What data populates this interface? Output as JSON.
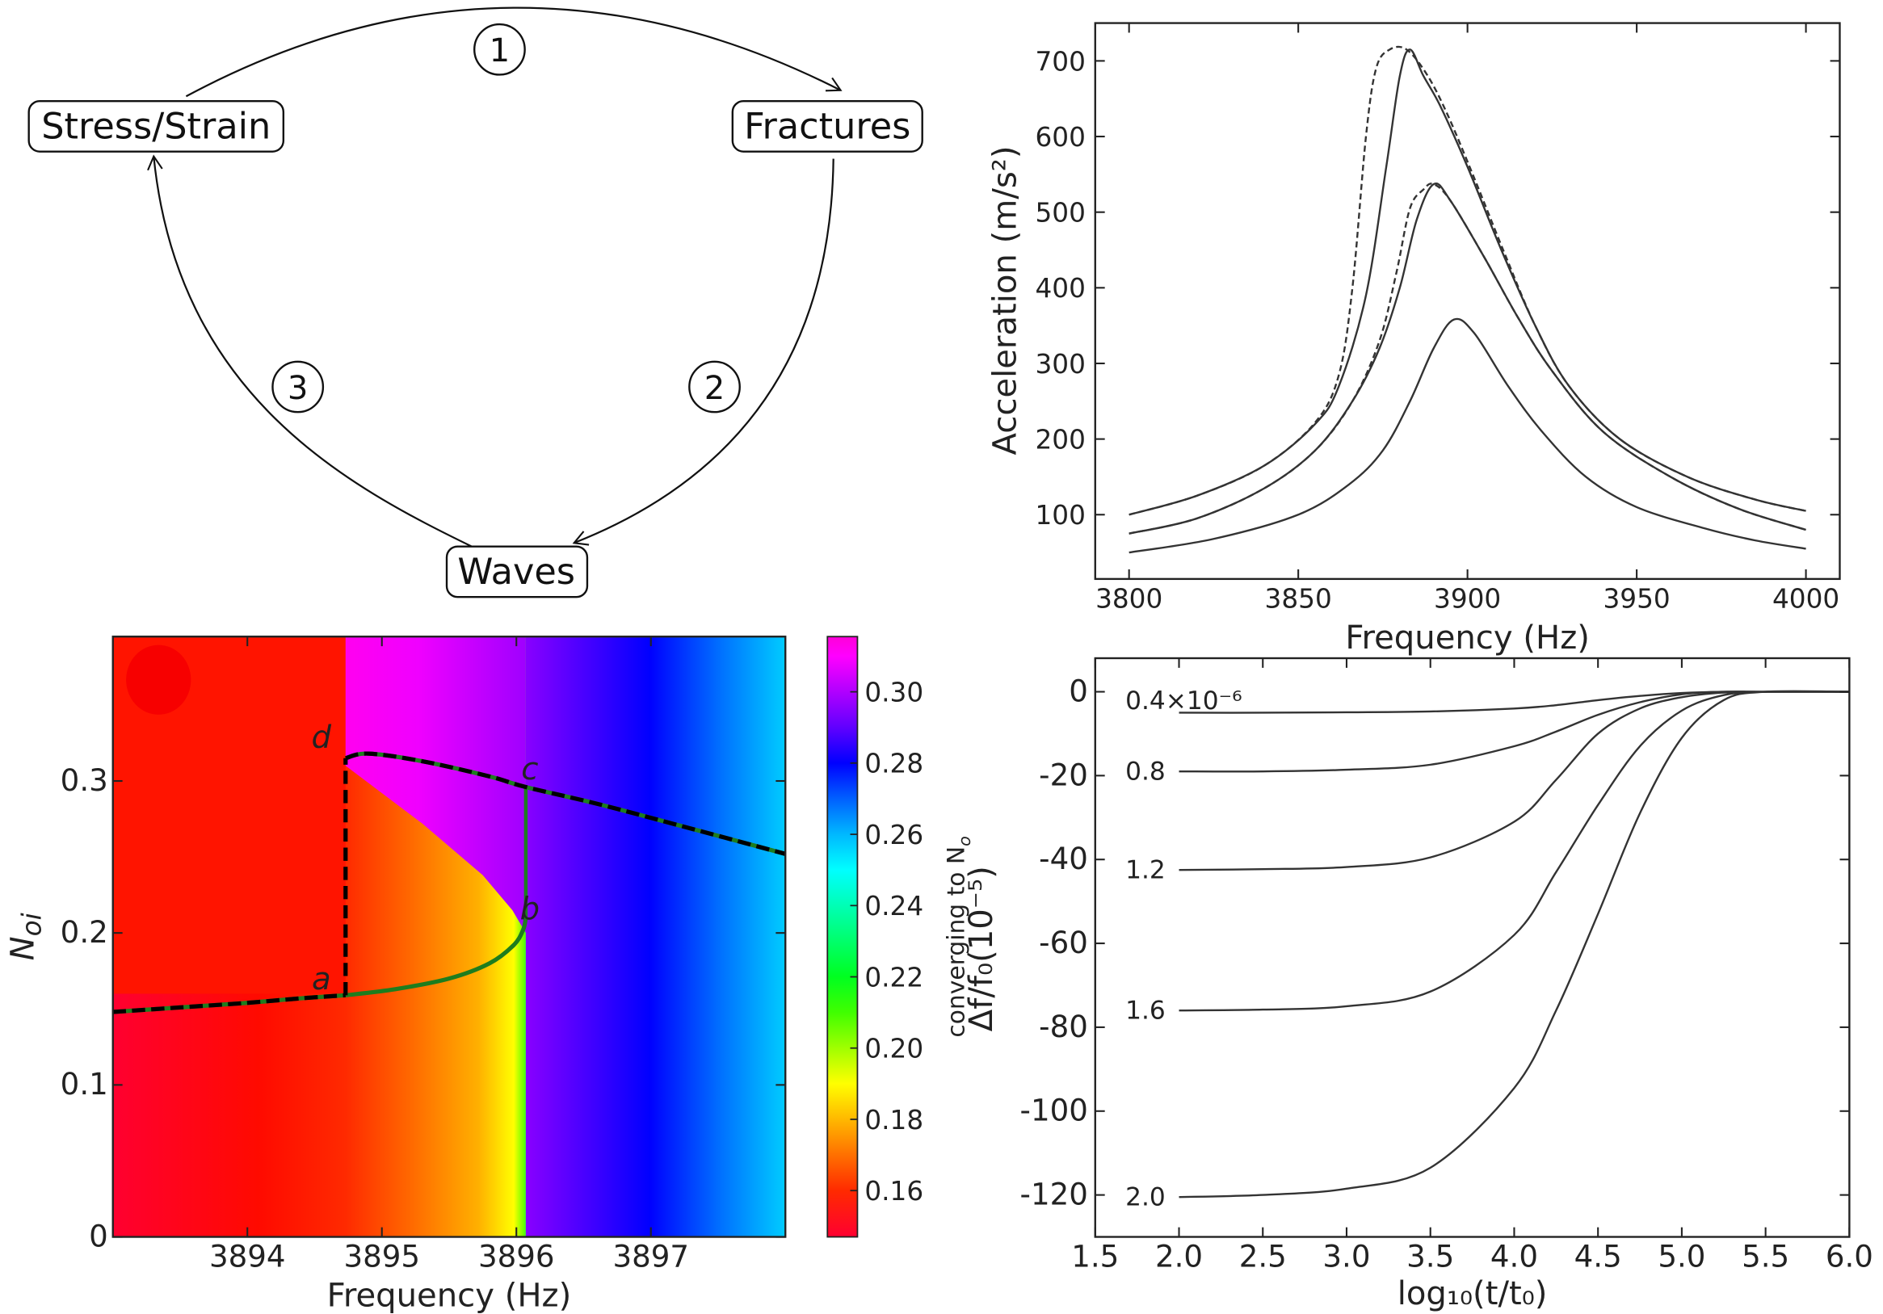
{
  "diagram": {
    "nodes": {
      "stress": "Stress/Strain",
      "fractures": "Fractures",
      "waves": "Waves"
    },
    "steps": [
      "1",
      "2",
      "3"
    ]
  },
  "chart_data": [
    {
      "type": "line",
      "xlabel": "Frequency (Hz)",
      "ylabel": "Acceleration (m/s²)",
      "xlim": [
        3790,
        4010
      ],
      "ylim": [
        15,
        750
      ],
      "x_ticks": [
        "3800",
        "3850",
        "3900",
        "3950",
        "4000"
      ],
      "y_ticks": [
        "100",
        "200",
        "300",
        "400",
        "500",
        "600",
        "700"
      ],
      "grid": false,
      "series": [
        {
          "style": "solid",
          "points": [
            [
              3800,
              100
            ],
            [
              3820,
              125
            ],
            [
              3840,
              165
            ],
            [
              3855,
              220
            ],
            [
              3862,
              270
            ],
            [
              3870,
              390
            ],
            [
              3876,
              560
            ],
            [
              3880,
              680
            ],
            [
              3883,
              715
            ],
            [
              3887,
              680
            ],
            [
              3892,
              640
            ],
            [
              3900,
              560
            ],
            [
              3910,
              450
            ],
            [
              3920,
              350
            ],
            [
              3930,
              270
            ],
            [
              3945,
              200
            ],
            [
              3965,
              150
            ],
            [
              3985,
              120
            ],
            [
              4000,
              105
            ]
          ]
        },
        {
          "style": "dashed",
          "points": [
            [
              3800,
              100
            ],
            [
              3820,
              125
            ],
            [
              3840,
              165
            ],
            [
              3855,
              222
            ],
            [
              3862,
              285
            ],
            [
              3866,
              400
            ],
            [
              3870,
              600
            ],
            [
              3873,
              690
            ],
            [
              3877,
              715
            ],
            [
              3882,
              715
            ],
            [
              3888,
              682
            ],
            [
              3894,
              630
            ],
            [
              3902,
              545
            ],
            [
              3911,
              445
            ],
            [
              3920,
              350
            ],
            [
              3930,
              270
            ],
            [
              3945,
              200
            ],
            [
              3965,
              150
            ],
            [
              3985,
              120
            ],
            [
              4000,
              105
            ]
          ]
        },
        {
          "style": "solid",
          "points": [
            [
              3800,
              75
            ],
            [
              3820,
              95
            ],
            [
              3840,
              135
            ],
            [
              3855,
              185
            ],
            [
              3866,
              250
            ],
            [
              3874,
              320
            ],
            [
              3880,
              400
            ],
            [
              3885,
              490
            ],
            [
              3890,
              537
            ],
            [
              3895,
              515
            ],
            [
              3905,
              440
            ],
            [
              3915,
              360
            ],
            [
              3925,
              290
            ],
            [
              3940,
              210
            ],
            [
              3960,
              150
            ],
            [
              3980,
              108
            ],
            [
              4000,
              80
            ]
          ]
        },
        {
          "style": "dashed",
          "points": [
            [
              3800,
              75
            ],
            [
              3820,
              95
            ],
            [
              3840,
              135
            ],
            [
              3855,
              185
            ],
            [
              3866,
              250
            ],
            [
              3874,
              330
            ],
            [
              3879,
              420
            ],
            [
              3883,
              505
            ],
            [
              3887,
              530
            ],
            [
              3890,
              537
            ],
            [
              3895,
              515
            ],
            [
              3905,
              440
            ],
            [
              3915,
              360
            ],
            [
              3925,
              290
            ],
            [
              3940,
              210
            ],
            [
              3960,
              150
            ],
            [
              3980,
              108
            ],
            [
              4000,
              80
            ]
          ]
        },
        {
          "style": "solid",
          "points": [
            [
              3800,
              50
            ],
            [
              3825,
              68
            ],
            [
              3850,
              100
            ],
            [
              3865,
              140
            ],
            [
              3875,
              185
            ],
            [
              3883,
              250
            ],
            [
              3890,
              320
            ],
            [
              3896,
              358
            ],
            [
              3902,
              340
            ],
            [
              3912,
              270
            ],
            [
              3922,
              210
            ],
            [
              3935,
              150
            ],
            [
              3950,
              110
            ],
            [
              3970,
              82
            ],
            [
              3985,
              66
            ],
            [
              4000,
              55
            ]
          ]
        }
      ]
    },
    {
      "type": "heatmap",
      "xlabel": "Frequency (Hz)",
      "ylabel": {
        "main": "N",
        "sub": "oi"
      },
      "xlim": [
        3893,
        3898
      ],
      "ylim": [
        0,
        0.395
      ],
      "x_ticks": [
        "3894",
        "3895",
        "3896",
        "3897"
      ],
      "y_ticks": [
        "0",
        "0.1",
        "0.2",
        "0.3"
      ],
      "colorbar": {
        "label": {
          "main": "converging to N",
          "sub": "o"
        },
        "range": [
          0.147,
          0.3155
        ],
        "ticks": [
          "0.16",
          "0.18",
          "0.20",
          "0.22",
          "0.24",
          "0.26",
          "0.28",
          "0.30"
        ],
        "colormap": [
          [
            0.147,
            "#ff0030"
          ],
          [
            0.16,
            "#ff2a00"
          ],
          [
            0.17,
            "#ff7000"
          ],
          [
            0.18,
            "#ffb800"
          ],
          [
            0.19,
            "#ffff00"
          ],
          [
            0.2,
            "#a0ff00"
          ],
          [
            0.21,
            "#40ff00"
          ],
          [
            0.22,
            "#00ff20"
          ],
          [
            0.235,
            "#00ff90"
          ],
          [
            0.25,
            "#00ffff"
          ],
          [
            0.26,
            "#00b8ff"
          ],
          [
            0.27,
            "#0060ff"
          ],
          [
            0.28,
            "#0000ff"
          ],
          [
            0.29,
            "#6000ff"
          ],
          [
            0.3,
            "#b000ff"
          ],
          [
            0.31,
            "#ff00ff"
          ],
          [
            0.3155,
            "#ff00d8"
          ]
        ]
      },
      "lines": {
        "lower_branch": [
          [
            3893,
            0.148
          ],
          [
            3893.5,
            0.151
          ],
          [
            3894,
            0.154
          ],
          [
            3894.4,
            0.157
          ],
          [
            3894.73,
            0.159
          ]
        ],
        "jump_ad": [
          [
            3894.73,
            0.159
          ],
          [
            3894.73,
            0.315
          ]
        ],
        "upper_branch": [
          [
            3894.73,
            0.315
          ],
          [
            3894.9,
            0.318
          ],
          [
            3895.3,
            0.313
          ],
          [
            3895.8,
            0.303
          ],
          [
            3896.07,
            0.296
          ],
          [
            3896.6,
            0.285
          ],
          [
            3897.2,
            0.271
          ],
          [
            3898,
            0.252
          ]
        ],
        "nose_green": [
          [
            3894.73,
            0.159
          ],
          [
            3895.1,
            0.163
          ],
          [
            3895.5,
            0.17
          ],
          [
            3895.8,
            0.18
          ],
          [
            3895.98,
            0.192
          ],
          [
            3896.05,
            0.202
          ],
          [
            3896.07,
            0.21
          ]
        ],
        "jump_bc": [
          [
            3896.07,
            0.21
          ],
          [
            3896.07,
            0.296
          ]
        ]
      },
      "boundary": [
        [
          3894.73,
          0.31
        ],
        [
          3895.3,
          0.272
        ],
        [
          3895.75,
          0.238
        ],
        [
          3895.97,
          0.215
        ],
        [
          3896.07,
          0.2
        ]
      ],
      "annotations": [
        {
          "text": "a",
          "x": 3894.55,
          "y": 0.163
        },
        {
          "text": "d",
          "x": 3894.55,
          "y": 0.322
        },
        {
          "text": "c",
          "x": 3896.1,
          "y": 0.301
        },
        {
          "text": "b",
          "x": 3896.1,
          "y": 0.209
        }
      ],
      "line_colors": {
        "dashed": "#000000",
        "green": "#1e7d1e"
      }
    },
    {
      "type": "line",
      "xlabel": "log₁₀(t/t₀)",
      "ylabel": "Δf/f₀(10⁻⁵)",
      "xlim": [
        1.5,
        6.0
      ],
      "ylim": [
        -130,
        8
      ],
      "x_ticks": [
        "1.5",
        "2.0",
        "2.5",
        "3.0",
        "3.5",
        "4.0",
        "4.5",
        "5.0",
        "5.5",
        "6.0"
      ],
      "y_ticks": [
        "0",
        "-20",
        "-40",
        "-60",
        "-80",
        "-100",
        "-120"
      ],
      "grid": false,
      "x": [
        2.0,
        2.5,
        3.0,
        3.5,
        4.0,
        4.25,
        4.5,
        4.75,
        5.0,
        5.25,
        5.5,
        6.0
      ],
      "series": [
        {
          "name": "0.4×10⁻⁶",
          "values": [
            -5,
            -5,
            -4.9,
            -4.7,
            -4,
            -3.2,
            -2,
            -1,
            -0.3,
            0,
            0,
            0
          ]
        },
        {
          "name": "0.8",
          "values": [
            -19,
            -19,
            -18.6,
            -17.4,
            -13,
            -9.5,
            -5.5,
            -2.5,
            -0.6,
            0,
            0,
            0
          ]
        },
        {
          "name": "1.2",
          "values": [
            -42.5,
            -42.3,
            -41.8,
            -39.5,
            -31,
            -21,
            -10,
            -4,
            -1.3,
            -0.2,
            0,
            0
          ]
        },
        {
          "name": "1.6",
          "values": [
            -76,
            -75.8,
            -75,
            -71.5,
            -58,
            -43,
            -27,
            -13,
            -4.5,
            -0.8,
            0,
            0
          ]
        },
        {
          "name": "2.0",
          "values": [
            -120.5,
            -120,
            -118.5,
            -113.5,
            -94.5,
            -76,
            -53,
            -29,
            -11,
            -2,
            0,
            0
          ]
        }
      ]
    }
  ]
}
